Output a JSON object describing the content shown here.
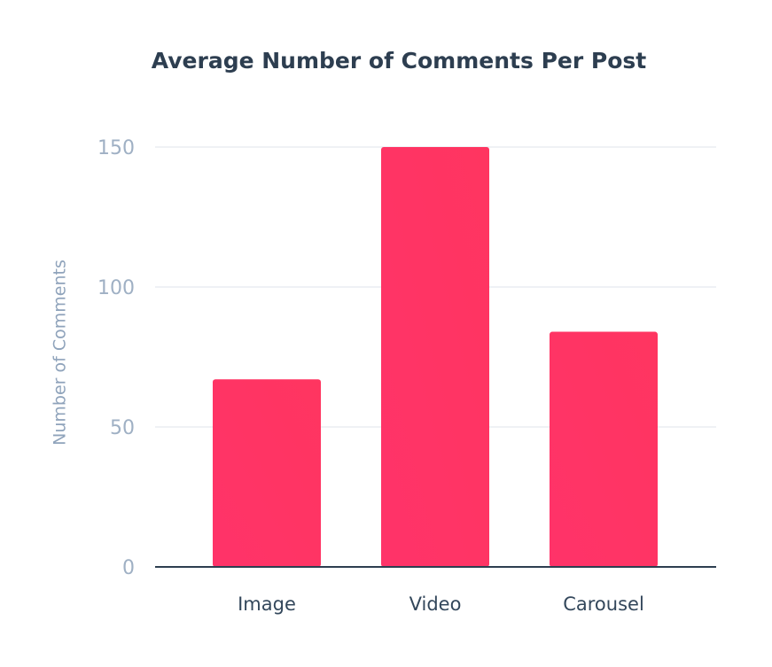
{
  "chart_data": {
    "type": "bar",
    "title": "Average Number of Comments Per Post",
    "y_label": "Number of Comments",
    "categories": [
      "Image",
      "Video",
      "Carousel"
    ],
    "values": [
      67,
      150,
      84
    ],
    "color": "#ff3560",
    "ylim": [
      0,
      150
    ],
    "yticks": [
      0,
      50,
      100,
      150
    ],
    "grid": true
  }
}
